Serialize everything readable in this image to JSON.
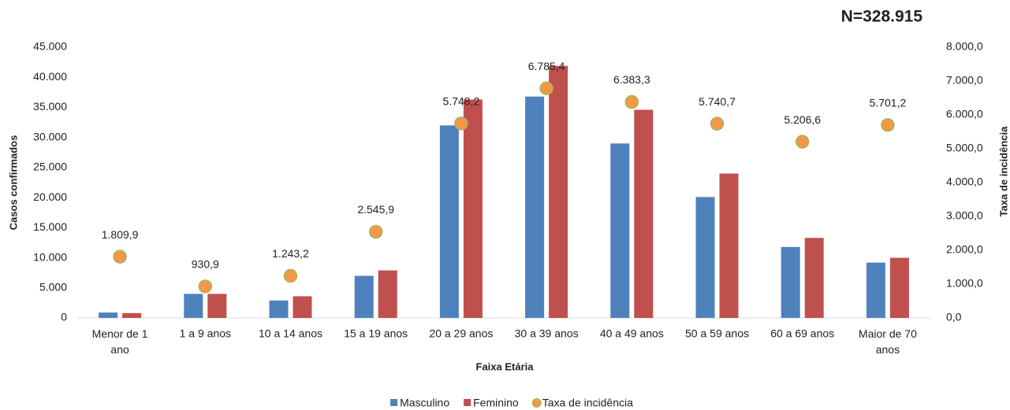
{
  "chart_data": {
    "type": "bar",
    "title": "N=328.915",
    "x_label": "Faixa Etária",
    "y_label": "Casos confirmados",
    "y2_label": "Taxa de incidência",
    "categories": [
      "Menor de 1 ano",
      "1 a 9 anos",
      "10 a 14 anos",
      "15 a 19 anos",
      "20 a 29 anos",
      "30 a 39 anos",
      "40 a 49 anos",
      "50 a 59 anos",
      "60 a 69 anos",
      "Maior de 70 anos"
    ],
    "series": [
      {
        "name": "Masculino",
        "color": "#4f81bd",
        "type": "bar",
        "values": [
          900,
          4000,
          2900,
          7000,
          32000,
          36800,
          29000,
          20100,
          11800,
          9200
        ]
      },
      {
        "name": "Feminino",
        "color": "#c0504d",
        "type": "bar",
        "values": [
          800,
          4000,
          3600,
          7900,
          36300,
          41900,
          34600,
          24000,
          13300,
          10000
        ]
      },
      {
        "name": "Taxa de incidência",
        "color": "#f79646",
        "type": "scatter",
        "axis": "y2",
        "values": [
          1809.9,
          930.9,
          1243.2,
          2545.9,
          5748.2,
          6785.4,
          6383.3,
          5740.7,
          5206.6,
          5701.2
        ],
        "value_labels": [
          "1.809,9",
          "930,9",
          "1.243,2",
          "2.545,9",
          "5.748,2",
          "6.785,4",
          "6.383,3",
          "5.740,7",
          "5.206,6",
          "5.701,2"
        ]
      }
    ],
    "ylim": [
      0,
      45000
    ],
    "yticks": [
      0,
      {
        "value": 5000,
        "label": "5.000"
      },
      {
        "value": 10000,
        "label": "10.000"
      },
      {
        "value": 15000,
        "label": "15.000"
      },
      {
        "value": 20000,
        "label": "20.000"
      },
      {
        "value": 25000,
        "label": "25.000"
      },
      {
        "value": 30000,
        "label": "30.000"
      },
      {
        "value": 35000,
        "label": "35.000"
      },
      {
        "value": 40000,
        "label": "40.000"
      },
      {
        "value": 45000,
        "label": "45.000"
      }
    ],
    "y2lim": [
      0,
      8000
    ],
    "y2ticks": [
      {
        "value": 0,
        "label": "0,0"
      },
      {
        "value": 1000,
        "label": "1.000,0"
      },
      {
        "value": 2000,
        "label": "2.000,0"
      },
      {
        "value": 3000,
        "label": "3.000,0"
      },
      {
        "value": 4000,
        "label": "4.000,0"
      },
      {
        "value": 5000,
        "label": "5.000,0"
      },
      {
        "value": 6000,
        "label": "6.000,0"
      },
      {
        "value": 7000,
        "label": "7.000,0"
      },
      {
        "value": 8000,
        "label": "8.000,0"
      }
    ],
    "grid": false
  }
}
